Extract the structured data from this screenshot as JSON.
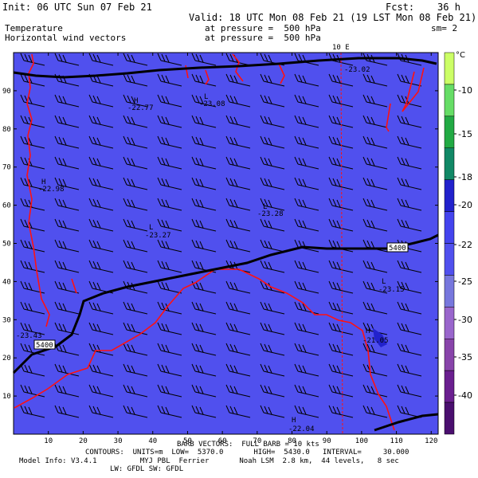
{
  "header": {
    "init": "Init: 06 UTC Sun 07 Feb 21",
    "fcst": "Fcst:    36 h",
    "valid": "Valid: 18 UTC Mon 08 Feb 21 (19 LST Mon 08 Feb 21)",
    "field1": "Temperature",
    "field1_level": "at pressure =  500 hPa",
    "field2": "Horizontal wind vectors",
    "field2_level": "at pressure =  500 hPa",
    "sm": "sm= 2"
  },
  "map": {
    "fill_color": "#5050ee",
    "x_ticks": [
      "10",
      "20",
      "30",
      "40",
      "50",
      "60",
      "70",
      "80",
      "90",
      "100",
      "110",
      "120"
    ],
    "y_ticks": [
      "10",
      "20",
      "30",
      "40",
      "50",
      "60",
      "70",
      "80",
      "90"
    ],
    "meridian_label": "10 E",
    "contour_label": "5400",
    "highs_lows": [
      {
        "sym": "H",
        "val": "-22.77"
      },
      {
        "sym": "L",
        "val": "-23.08"
      },
      {
        "sym": "H",
        "val": "-22.98"
      },
      {
        "sym": "L",
        "val": "-23.28"
      },
      {
        "sym": "L",
        "val": "-23.27"
      },
      {
        "sym": "L",
        "val": "-23.15"
      },
      {
        "sym": "",
        "val": "-23.43"
      },
      {
        "sym": "H",
        "val": "-21.05"
      },
      {
        "sym": "H",
        "val": "-22.04"
      },
      {
        "sym": "",
        "val": "-23.02"
      }
    ]
  },
  "colorbar": {
    "unit": "°C",
    "labels": [
      "-10",
      "-15",
      "-18",
      "-20",
      "-22",
      "-25",
      "-30",
      "-35",
      "-40"
    ],
    "colors": [
      "#ccff66",
      "#66dd66",
      "#22aa44",
      "#118866",
      "#2222cc",
      "#4444ee",
      "#5050ee",
      "#7777dd",
      "#9966cc",
      "#8844aa",
      "#6a1f8f",
      "#4a0f6f"
    ]
  },
  "footer": {
    "barb": "BARB VECTORS:  FULL BARB = 10 kts",
    "contours": "CONTOURS:  UNITS=m  LOW=  5370.0       HIGH=  5430.0   INTERVAL=     30.000",
    "model": "Model Info: V3.4.1          MYJ PBL  Ferrier       Noah LSM  2.8 km,  44 levels,   8 sec",
    "rad": "LW: GFDL SW: GFDL"
  }
}
